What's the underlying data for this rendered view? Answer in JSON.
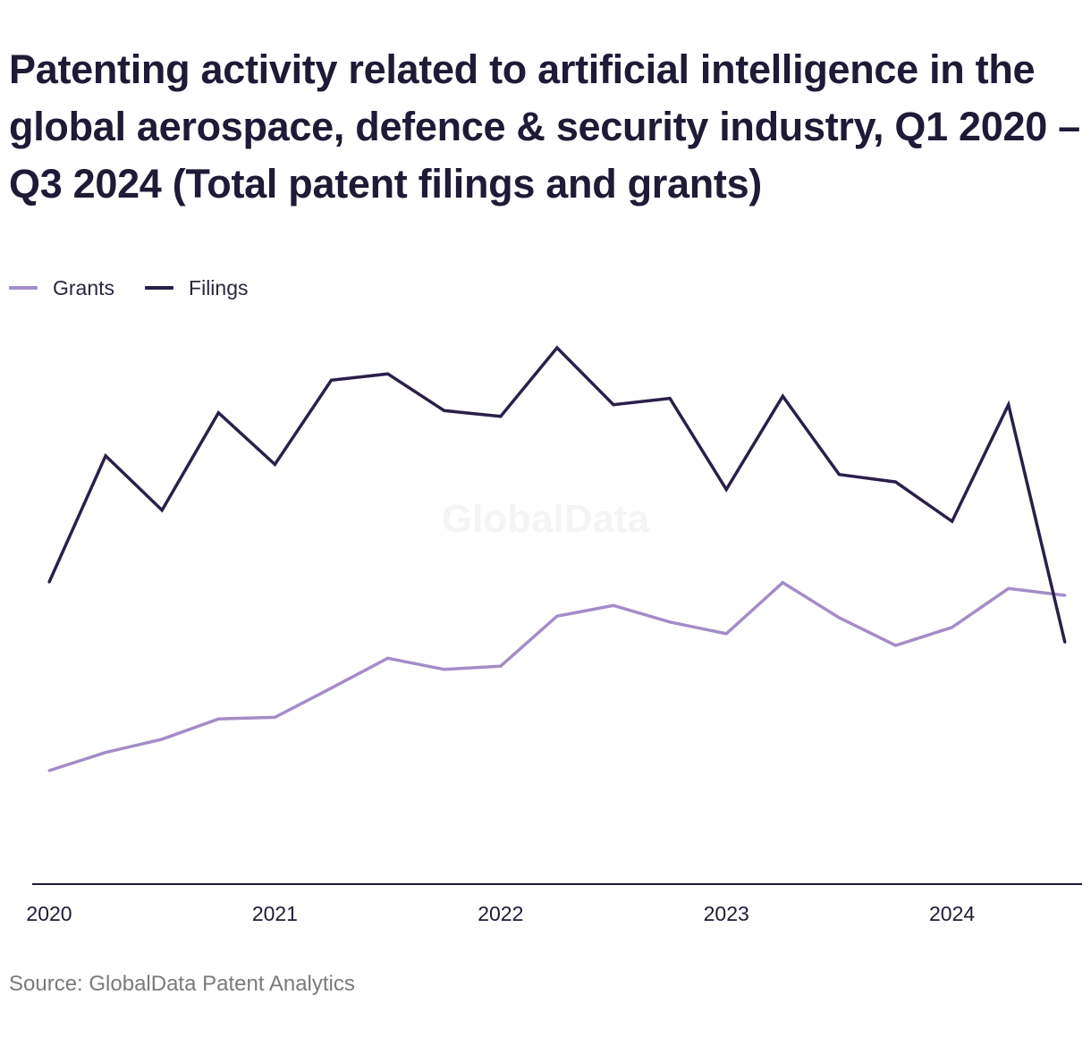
{
  "title": "Patenting activity related to artificial intelligence in the global aerospace, defence & security industry, Q1 2020 – Q3 2024 (Total patent filings and grants)",
  "source": "Source: GlobalData Patent Analytics",
  "watermark": "GlobalData",
  "colors": {
    "grants": "#a48cc8",
    "filings": "#2b1f4a",
    "axis": "#1f1a36",
    "watermark": "#f4f4f4"
  },
  "legend": [
    {
      "label": "Grants",
      "color": "#a48cc8"
    },
    {
      "label": "Filings",
      "color": "#2b1f4a"
    }
  ],
  "chart_data": {
    "type": "line",
    "x": [
      "2020 Q1",
      "2020 Q2",
      "2020 Q3",
      "2020 Q4",
      "2021 Q1",
      "2021 Q2",
      "2021 Q3",
      "2021 Q4",
      "2022 Q1",
      "2022 Q2",
      "2022 Q3",
      "2022 Q4",
      "2023 Q1",
      "2023 Q2",
      "2023 Q3",
      "2023 Q4",
      "2024 Q1",
      "2024 Q2",
      "2024 Q3"
    ],
    "x_tick_labels": [
      "2020",
      "2021",
      "2022",
      "2023",
      "2024"
    ],
    "y_axis_labels_shown": false,
    "ylim": [
      0,
      1000
    ],
    "grid": false,
    "legend_position": "top-left",
    "series": [
      {
        "name": "Grants",
        "color": "#a48cc8",
        "values": [
          215,
          249,
          274,
          312,
          315,
          370,
          426,
          405,
          411,
          505,
          525,
          494,
          472,
          568,
          502,
          450,
          484,
          557,
          544
        ]
      },
      {
        "name": "Filings",
        "color": "#2b1f4a",
        "values": [
          569,
          806,
          704,
          887,
          790,
          948,
          960,
          891,
          880,
          1009,
          902,
          914,
          743,
          918,
          771,
          757,
          683,
          902,
          456
        ]
      }
    ]
  }
}
